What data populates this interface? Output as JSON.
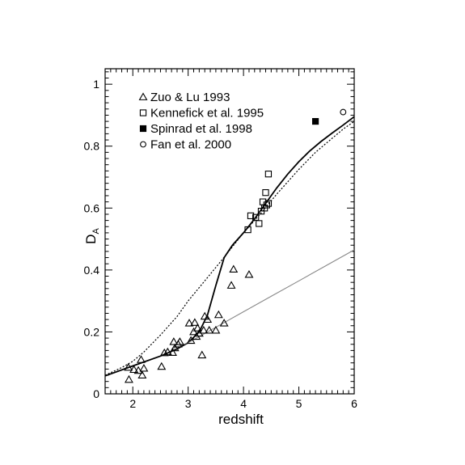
{
  "chart_data": {
    "type": "scatter",
    "xlabel": "redshift",
    "ylabel": "D",
    "ylabel_sub": "A",
    "xlim": [
      1.5,
      6
    ],
    "ylim": [
      0,
      1.05
    ],
    "x_ticks": [
      2,
      3,
      4,
      5,
      6
    ],
    "y_ticks": [
      0,
      0.2,
      0.4,
      0.6,
      0.8,
      1
    ],
    "grid": false,
    "legend_position": "top-left",
    "series": [
      {
        "name": "Zuo & Lu 1993",
        "marker": "open-triangle",
        "points": [
          [
            1.92,
            0.085
          ],
          [
            1.93,
            0.046
          ],
          [
            2.02,
            0.078
          ],
          [
            2.1,
            0.075
          ],
          [
            2.15,
            0.11
          ],
          [
            2.17,
            0.06
          ],
          [
            2.2,
            0.082
          ],
          [
            2.52,
            0.088
          ],
          [
            2.57,
            0.132
          ],
          [
            2.63,
            0.135
          ],
          [
            2.72,
            0.133
          ],
          [
            2.74,
            0.168
          ],
          [
            2.76,
            0.148
          ],
          [
            2.82,
            0.16
          ],
          [
            2.85,
            0.168
          ],
          [
            3.02,
            0.228
          ],
          [
            3.05,
            0.172
          ],
          [
            3.1,
            0.2
          ],
          [
            3.12,
            0.23
          ],
          [
            3.15,
            0.185
          ],
          [
            3.17,
            0.212
          ],
          [
            3.2,
            0.195
          ],
          [
            3.25,
            0.125
          ],
          [
            3.28,
            0.205
          ],
          [
            3.3,
            0.25
          ],
          [
            3.35,
            0.24
          ],
          [
            3.38,
            0.205
          ],
          [
            3.5,
            0.205
          ],
          [
            3.55,
            0.255
          ],
          [
            3.65,
            0.228
          ],
          [
            3.78,
            0.35
          ],
          [
            3.82,
            0.402
          ],
          [
            4.1,
            0.385
          ]
        ]
      },
      {
        "name": "Kennefick et al. 1995",
        "marker": "open-square",
        "points": [
          [
            4.08,
            0.53
          ],
          [
            4.13,
            0.575
          ],
          [
            4.22,
            0.57
          ],
          [
            4.28,
            0.55
          ],
          [
            4.32,
            0.59
          ],
          [
            4.35,
            0.62
          ],
          [
            4.38,
            0.6
          ],
          [
            4.4,
            0.65
          ],
          [
            4.42,
            0.61
          ],
          [
            4.45,
            0.615
          ],
          [
            4.45,
            0.71
          ]
        ]
      },
      {
        "name": "Spinrad et al. 1998",
        "marker": "filled-square",
        "points": [
          [
            5.3,
            0.88
          ]
        ]
      },
      {
        "name": "Fan et al. 2000",
        "marker": "open-circle",
        "points": [
          [
            5.8,
            0.91
          ]
        ]
      }
    ],
    "curves": [
      {
        "style": "solid-thick",
        "points": [
          [
            1.5,
            0.058
          ],
          [
            2.0,
            0.09
          ],
          [
            2.5,
            0.122
          ],
          [
            2.8,
            0.145
          ],
          [
            3.0,
            0.165
          ],
          [
            3.2,
            0.2
          ],
          [
            3.35,
            0.255
          ],
          [
            3.5,
            0.35
          ],
          [
            3.65,
            0.44
          ],
          [
            3.8,
            0.48
          ],
          [
            4.0,
            0.52
          ],
          [
            4.2,
            0.565
          ],
          [
            4.4,
            0.615
          ],
          [
            4.6,
            0.665
          ],
          [
            4.8,
            0.71
          ],
          [
            5.0,
            0.75
          ],
          [
            5.2,
            0.785
          ],
          [
            5.4,
            0.815
          ],
          [
            5.6,
            0.842
          ],
          [
            5.8,
            0.868
          ],
          [
            6.0,
            0.895
          ]
        ]
      },
      {
        "style": "dotted",
        "points": [
          [
            1.5,
            0.06
          ],
          [
            1.8,
            0.085
          ],
          [
            2.0,
            0.105
          ],
          [
            2.2,
            0.135
          ],
          [
            2.5,
            0.19
          ],
          [
            2.8,
            0.25
          ],
          [
            3.0,
            0.3
          ],
          [
            3.3,
            0.365
          ],
          [
            3.6,
            0.43
          ],
          [
            4.0,
            0.52
          ],
          [
            4.3,
            0.58
          ],
          [
            4.6,
            0.645
          ],
          [
            5.0,
            0.725
          ],
          [
            5.3,
            0.78
          ],
          [
            5.6,
            0.825
          ],
          [
            5.8,
            0.855
          ],
          [
            6.0,
            0.88
          ]
        ]
      },
      {
        "style": "solid-thin-gray",
        "points": [
          [
            2.7,
            0.145
          ],
          [
            3.0,
            0.165
          ],
          [
            3.5,
            0.215
          ],
          [
            4.0,
            0.265
          ],
          [
            4.5,
            0.315
          ],
          [
            5.0,
            0.365
          ],
          [
            5.5,
            0.415
          ],
          [
            6.0,
            0.465
          ]
        ]
      }
    ]
  }
}
